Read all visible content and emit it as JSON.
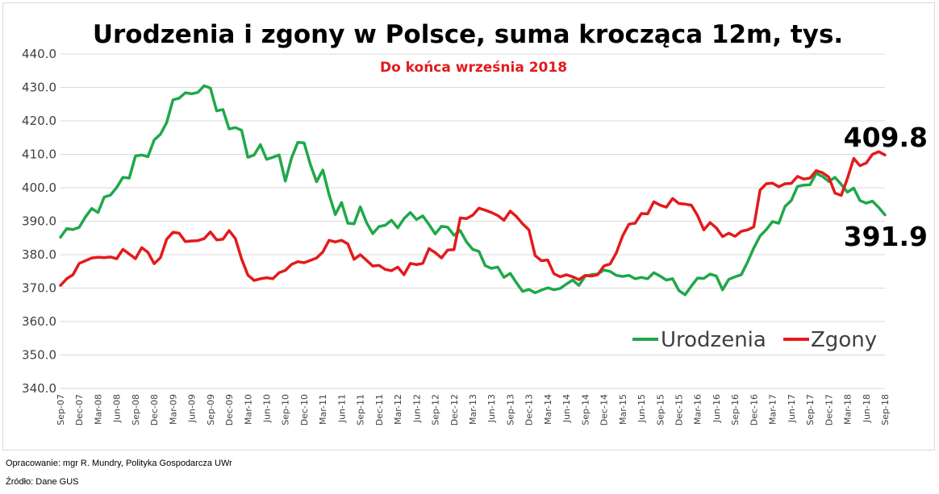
{
  "footer": {
    "author": "Opracowanie: mgr R. Mundry, Polityka Gospodarcza UWr",
    "source": "Źródło: Dane GUS"
  },
  "chart_data": {
    "type": "line",
    "title": "Urodzenia i zgony w Polsce, suma krocząca 12m, tys.",
    "subtitle": "Do końca września 2018",
    "ylim": [
      340,
      440
    ],
    "yticks": [
      "340.0",
      "350.0",
      "360.0",
      "370.0",
      "380.0",
      "390.0",
      "400.0",
      "410.0",
      "420.0",
      "430.0",
      "440.0"
    ],
    "grid": true,
    "legend_position": "lower-right",
    "x": [
      "Sep-07",
      "Oct-07",
      "Nov-07",
      "Dec-07",
      "Jan-08",
      "Feb-08",
      "Mar-08",
      "Apr-08",
      "May-08",
      "Jun-08",
      "Jul-08",
      "Aug-08",
      "Sep-08",
      "Oct-08",
      "Nov-08",
      "Dec-08",
      "Jan-09",
      "Feb-09",
      "Mar-09",
      "Apr-09",
      "May-09",
      "Jun-09",
      "Jul-09",
      "Aug-09",
      "Sep-09",
      "Oct-09",
      "Nov-09",
      "Dec-09",
      "Jan-10",
      "Feb-10",
      "Mar-10",
      "Apr-10",
      "May-10",
      "Jun-10",
      "Jul-10",
      "Aug-10",
      "Sep-10",
      "Oct-10",
      "Nov-10",
      "Dec-10",
      "Jan-11",
      "Feb-11",
      "Mar-11",
      "Apr-11",
      "May-11",
      "Jun-11",
      "Jul-11",
      "Aug-11",
      "Sep-11",
      "Oct-11",
      "Nov-11",
      "Dec-11",
      "Jan-12",
      "Feb-12",
      "Mar-12",
      "Apr-12",
      "May-12",
      "Jun-12",
      "Jul-12",
      "Aug-12",
      "Sep-12",
      "Oct-12",
      "Nov-12",
      "Dec-12",
      "Jan-13",
      "Feb-13",
      "Mar-13",
      "Apr-13",
      "May-13",
      "Jun-13",
      "Jul-13",
      "Aug-13",
      "Sep-13",
      "Oct-13",
      "Nov-13",
      "Dec-13",
      "Jan-14",
      "Feb-14",
      "Mar-14",
      "Apr-14",
      "May-14",
      "Jun-14",
      "Jul-14",
      "Aug-14",
      "Sep-14",
      "Oct-14",
      "Nov-14",
      "Dec-14",
      "Jan-15",
      "Feb-15",
      "Mar-15",
      "Apr-15",
      "May-15",
      "Jun-15",
      "Jul-15",
      "Aug-15",
      "Sep-15",
      "Oct-15",
      "Nov-15",
      "Dec-15",
      "Jan-16",
      "Feb-16",
      "Mar-16",
      "Apr-16",
      "May-16",
      "Jun-16",
      "Jul-16",
      "Aug-16",
      "Sep-16",
      "Oct-16",
      "Nov-16",
      "Dec-16",
      "Jan-17",
      "Feb-17",
      "Mar-17",
      "Apr-17",
      "May-17",
      "Jun-17",
      "Jul-17",
      "Aug-17",
      "Sep-17",
      "Oct-17",
      "Nov-17",
      "Dec-17",
      "Jan-18",
      "Feb-18",
      "Mar-18",
      "Apr-18",
      "May-18",
      "Jun-18",
      "Jul-18",
      "Aug-18",
      "Sep-18"
    ],
    "xtick_labels": [
      "Sep-07",
      "Dec-07",
      "Mar-08",
      "Jun-08",
      "Sep-08",
      "Dec-08",
      "Mar-09",
      "Jun-09",
      "Sep-09",
      "Dec-09",
      "Mar-10",
      "Jun-10",
      "Sep-10",
      "Dec-10",
      "Mar-11",
      "Jun-11",
      "Sep-11",
      "Dec-11",
      "Mar-12",
      "Jun-12",
      "Sep-12",
      "Dec-12",
      "Mar-13",
      "Jun-13",
      "Sep-13",
      "Dec-13",
      "Mar-14",
      "Jun-14",
      "Sep-14",
      "Dec-14",
      "Mar-15",
      "Jun-15",
      "Sep-15",
      "Dec-15",
      "Mar-16",
      "Jun-16",
      "Sep-16",
      "Dec-16",
      "Mar-17",
      "Jun-17",
      "Sep-17",
      "Dec-17",
      "Mar-18",
      "Jun-18",
      "Sep-18"
    ],
    "series": [
      {
        "name": "Urodzenia",
        "color": "#1fa84a",
        "end_label": "391.9",
        "values": [
          385.2,
          387.8,
          387.5,
          388.2,
          391.3,
          393.8,
          392.6,
          397.2,
          397.8,
          400.1,
          403.1,
          402.9,
          409.5,
          409.8,
          409.3,
          414.3,
          416.0,
          419.5,
          426.3,
          426.8,
          428.4,
          428.1,
          428.5,
          430.5,
          429.8,
          423.0,
          423.4,
          417.6,
          418.0,
          417.2,
          409.1,
          409.8,
          412.9,
          408.5,
          409.1,
          409.8,
          402.0,
          409.0,
          413.6,
          413.4,
          407.0,
          401.8,
          405.3,
          398.0,
          392.0,
          395.6,
          389.4,
          389.2,
          394.3,
          389.6,
          386.3,
          388.4,
          388.8,
          390.3,
          388.0,
          390.8,
          392.6,
          390.5,
          391.6,
          389.0,
          386.2,
          388.5,
          388.2,
          385.8,
          387.2,
          383.8,
          381.6,
          381.0,
          376.7,
          375.9,
          376.3,
          373.2,
          374.4,
          371.6,
          369.0,
          369.6,
          368.6,
          369.4,
          370.1,
          369.5,
          369.9,
          371.2,
          372.4,
          370.8,
          373.6,
          374.0,
          374.2,
          375.4,
          375.0,
          373.8,
          373.5,
          373.8,
          372.8,
          373.2,
          372.8,
          374.6,
          373.6,
          372.4,
          372.8,
          369.3,
          368.0,
          370.6,
          373.0,
          372.9,
          374.2,
          373.6,
          369.5,
          372.6,
          373.4,
          374.0,
          377.8,
          382.0,
          385.6,
          387.5,
          389.9,
          389.4,
          394.4,
          396.2,
          400.4,
          400.8,
          400.9,
          404.3,
          403.4,
          401.9,
          403.1,
          401.0,
          398.7,
          399.9,
          396.2,
          395.4,
          396.0,
          394.1,
          391.9
        ]
      },
      {
        "name": "Zgony",
        "color": "#e31a1c",
        "end_label": "409.8",
        "values": [
          370.8,
          372.8,
          374.0,
          377.4,
          378.2,
          379.0,
          379.2,
          379.1,
          379.3,
          378.8,
          381.6,
          380.2,
          378.8,
          382.1,
          380.7,
          377.3,
          379.1,
          384.6,
          386.7,
          386.4,
          383.9,
          384.1,
          384.2,
          384.8,
          386.8,
          384.4,
          384.6,
          387.2,
          384.8,
          378.7,
          373.9,
          372.3,
          372.8,
          373.1,
          372.8,
          374.6,
          375.3,
          377.1,
          377.9,
          377.6,
          378.3,
          379.0,
          380.8,
          384.3,
          383.8,
          384.3,
          383.2,
          378.6,
          380.0,
          378.3,
          376.6,
          376.8,
          375.6,
          375.2,
          376.3,
          374.0,
          377.4,
          377.0,
          377.4,
          381.8,
          380.6,
          379.0,
          381.4,
          381.5,
          391.0,
          390.8,
          391.8,
          393.9,
          393.3,
          392.6,
          391.7,
          390.3,
          393.0,
          391.4,
          389.2,
          387.4,
          379.7,
          378.2,
          378.4,
          374.3,
          373.4,
          374.0,
          373.4,
          372.5,
          373.8,
          373.6,
          374.0,
          376.6,
          377.2,
          380.6,
          385.6,
          389.1,
          389.4,
          392.3,
          392.2,
          395.8,
          394.8,
          394.2,
          396.8,
          395.3,
          395.1,
          394.8,
          391.7,
          387.4,
          389.6,
          388.0,
          385.4,
          386.4,
          385.5,
          387.0,
          387.4,
          388.3,
          399.3,
          401.2,
          401.4,
          400.3,
          401.2,
          401.3,
          403.4,
          402.6,
          402.9,
          405.1,
          404.5,
          403.2,
          398.4,
          397.7,
          402.8,
          408.8,
          406.6,
          407.4,
          410.0,
          410.8,
          409.8
        ]
      }
    ]
  }
}
